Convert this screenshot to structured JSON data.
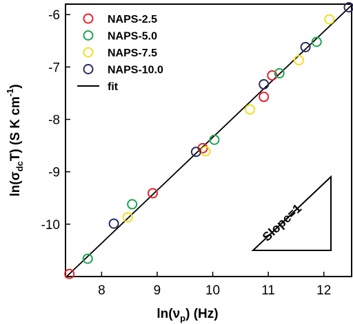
{
  "chart_data": {
    "type": "scatter",
    "xlabel_main": "ln(ν",
    "xlabel_sub": "p",
    "xlabel_tail": ") (Hz)",
    "ylabel_main": "ln(σ",
    "ylabel_sub": "dc",
    "ylabel_tail": "T) (S K cm",
    "ylabel_sup": "-1",
    "ylabel_close": ")",
    "xlim": [
      7.35,
      12.5
    ],
    "ylim": [
      -11.0,
      -5.8
    ],
    "xticks": [
      8,
      9,
      10,
      11,
      12
    ],
    "yticks": [
      -10,
      -9,
      -8,
      -7,
      -6
    ],
    "series": [
      {
        "name": "NAPS-2.5",
        "color": "#e8202a",
        "points": [
          [
            7.42,
            -10.95
          ],
          [
            8.92,
            -9.41
          ],
          [
            9.82,
            -8.55
          ],
          [
            10.92,
            -7.57
          ],
          [
            11.07,
            -7.16
          ]
        ]
      },
      {
        "name": "NAPS-5.0",
        "color": "#1aa550",
        "points": [
          [
            7.75,
            -10.66
          ],
          [
            8.55,
            -9.62
          ],
          [
            10.03,
            -8.39
          ],
          [
            11.2,
            -7.12
          ],
          [
            11.87,
            -6.52
          ]
        ]
      },
      {
        "name": "NAPS-7.5",
        "color": "#f5dd20",
        "points": [
          [
            8.47,
            -9.87
          ],
          [
            9.87,
            -8.61
          ],
          [
            10.67,
            -7.81
          ],
          [
            11.55,
            -6.87
          ],
          [
            12.1,
            -6.09
          ]
        ]
      },
      {
        "name": "NAPS-10.0",
        "color": "#2a2a5e",
        "points": [
          [
            8.22,
            -9.99
          ],
          [
            9.7,
            -8.62
          ],
          [
            10.92,
            -7.33
          ],
          [
            11.67,
            -6.62
          ],
          [
            12.45,
            -5.86
          ]
        ]
      }
    ],
    "fit": {
      "name": "fit",
      "color": "#000000",
      "x": [
        7.35,
        12.5
      ],
      "y": [
        -11.02,
        -5.82
      ]
    },
    "annotation": "Slope=1",
    "legend_position": "top-left",
    "grid": false
  }
}
